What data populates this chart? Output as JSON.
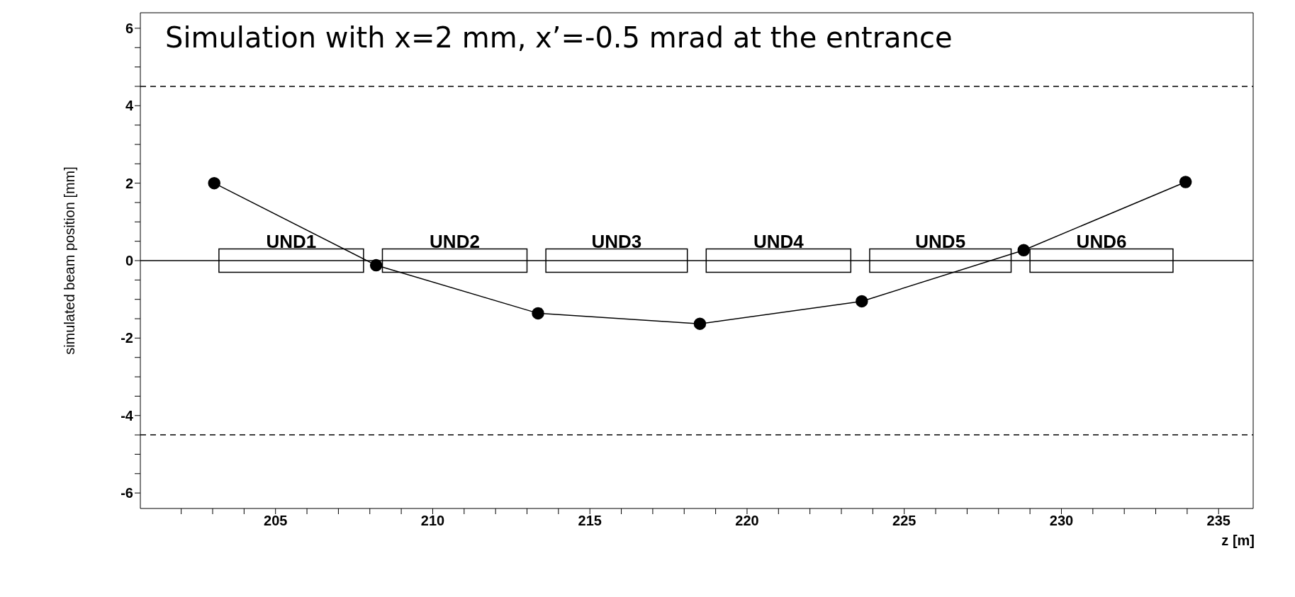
{
  "chart_data": {
    "type": "line",
    "title": "Simulation with x=2 mm,  x’=-0.5 mrad  at the entrance",
    "xlabel": "z [m]",
    "ylabel": "simulated beam position [mm]",
    "x": [
      203.05,
      208.2,
      213.35,
      218.5,
      223.65,
      228.8,
      233.95
    ],
    "series": [
      {
        "color": "#000000",
        "values": [
          2.0,
          -0.12,
          -1.36,
          -1.63,
          -1.05,
          0.27,
          2.03
        ]
      }
    ],
    "marker": "circle",
    "line_style": "solid",
    "xlim": [
      200.7,
      236.1
    ],
    "xticks": [
      {
        "value": 202,
        "label": null
      },
      {
        "value": 203,
        "label": null
      },
      {
        "value": 204,
        "label": null
      },
      205,
      {
        "value": 206,
        "label": null
      },
      {
        "value": 207,
        "label": null
      },
      {
        "value": 208,
        "label": null
      },
      {
        "value": 209,
        "label": null
      },
      210,
      {
        "value": 211,
        "label": null
      },
      {
        "value": 212,
        "label": null
      },
      {
        "value": 213,
        "label": null
      },
      {
        "value": 214,
        "label": null
      },
      215,
      {
        "value": 216,
        "label": null
      },
      {
        "value": 217,
        "label": null
      },
      {
        "value": 218,
        "label": null
      },
      {
        "value": 219,
        "label": null
      },
      220,
      {
        "value": 221,
        "label": null
      },
      {
        "value": 222,
        "label": null
      },
      {
        "value": 223,
        "label": null
      },
      {
        "value": 224,
        "label": null
      },
      225,
      {
        "value": 226,
        "label": null
      },
      {
        "value": 227,
        "label": null
      },
      {
        "value": 228,
        "label": null
      },
      {
        "value": 229,
        "label": null
      },
      230,
      {
        "value": 231,
        "label": null
      },
      {
        "value": 232,
        "label": null
      },
      {
        "value": 233,
        "label": null
      },
      {
        "value": 234,
        "label": null
      },
      235
    ],
    "ylim": [
      -6.4,
      6.4
    ],
    "yticks": [
      -6,
      {
        "value": -5.5,
        "label": null
      },
      {
        "value": -5,
        "label": null
      },
      {
        "value": -4.5,
        "label": null
      },
      -4,
      {
        "value": -3.5,
        "label": null
      },
      {
        "value": -3,
        "label": null
      },
      {
        "value": -2.5,
        "label": null
      },
      -2,
      {
        "value": -1.5,
        "label": null
      },
      {
        "value": -1,
        "label": null
      },
      {
        "value": -0.5,
        "label": null
      },
      0,
      {
        "value": 0.5,
        "label": null
      },
      {
        "value": 1,
        "label": null
      },
      {
        "value": 1.5,
        "label": null
      },
      2,
      {
        "value": 2.5,
        "label": null
      },
      {
        "value": 3,
        "label": null
      },
      {
        "value": 3.5,
        "label": null
      },
      4,
      {
        "value": 4.5,
        "label": null
      },
      {
        "value": 5,
        "label": null
      },
      {
        "value": 5.5,
        "label": null
      },
      6
    ],
    "ref_lines": [
      {
        "axis": "y",
        "value": 4.5,
        "line_style": "dashed"
      },
      {
        "axis": "y",
        "value": -4.5,
        "line_style": "dashed"
      },
      {
        "axis": "y",
        "value": 0,
        "line_style": "solid"
      }
    ],
    "bands": [
      {
        "axis": "x",
        "from": 203.2,
        "to": 207.8,
        "label": "UND1",
        "color": "#ffffff"
      },
      {
        "axis": "x",
        "from": 208.4,
        "to": 213.0,
        "label": "UND2",
        "color": "#ffffff"
      },
      {
        "axis": "x",
        "from": 213.6,
        "to": 218.1,
        "label": "UND3",
        "color": "#ffffff"
      },
      {
        "axis": "x",
        "from": 218.7,
        "to": 223.3,
        "label": "UND4",
        "color": "#ffffff"
      },
      {
        "axis": "x",
        "from": 223.9,
        "to": 228.4,
        "label": "UND5",
        "color": "#ffffff"
      },
      {
        "axis": "x",
        "from": 229.0,
        "to": 233.55,
        "label": "UND6",
        "color": "#ffffff"
      }
    ]
  }
}
